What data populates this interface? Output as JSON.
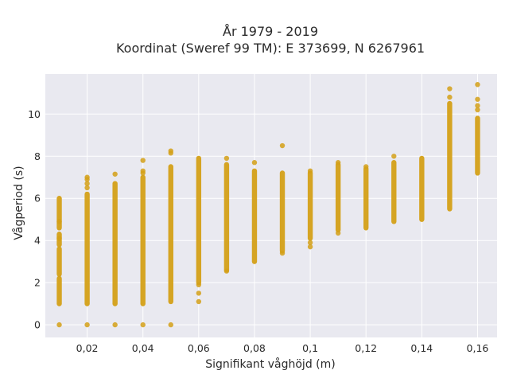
{
  "chart_data": {
    "type": "scatter",
    "title_lines": [
      "År 1979 - 2019",
      "Koordinat (Sweref 99 TM): E 373699, N 6267961"
    ],
    "xlabel": "Signifikant våghöjd (m)",
    "ylabel": "Vågperiod (s)",
    "xlim": [
      0.005,
      0.167
    ],
    "ylim": [
      -0.6,
      11.9
    ],
    "x_ticks": [
      0.02,
      0.04,
      0.06,
      0.08,
      0.1,
      0.12,
      0.14,
      0.16
    ],
    "x_tick_labels": [
      "0,02",
      "0,04",
      "0,06",
      "0,08",
      "0,1",
      "0,12",
      "0,14",
      "0,16"
    ],
    "y_ticks": [
      0,
      2,
      4,
      6,
      8,
      10
    ],
    "y_tick_labels": [
      "0",
      "2",
      "4",
      "6",
      "8",
      "10"
    ],
    "grid": true,
    "marker_color": "#D4A017",
    "plot_background": "#E9E9F0",
    "columns": [
      {
        "x": 0.01,
        "bands": [
          [
            1.0,
            2.2
          ],
          [
            2.4,
            3.6
          ],
          [
            3.8,
            4.3
          ],
          [
            4.6,
            6.0
          ]
        ],
        "points": [
          0,
          4.9,
          4.1
        ]
      },
      {
        "x": 0.02,
        "bands": [
          [
            1.0,
            6.2
          ]
        ],
        "points": [
          0,
          6.5,
          6.7,
          6.9,
          7.0
        ]
      },
      {
        "x": 0.03,
        "bands": [
          [
            1.0,
            6.7
          ]
        ],
        "points": [
          0,
          7.15
        ]
      },
      {
        "x": 0.04,
        "bands": [
          [
            1.0,
            7.0
          ]
        ],
        "points": [
          0,
          7.2,
          7.3,
          7.8
        ]
      },
      {
        "x": 0.05,
        "bands": [
          [
            1.1,
            7.5
          ]
        ],
        "points": [
          0,
          8.15,
          8.25
        ]
      },
      {
        "x": 0.06,
        "bands": [
          [
            2.0,
            7.9
          ]
        ],
        "points": [
          1.1,
          1.5,
          1.9
        ]
      },
      {
        "x": 0.07,
        "bands": [
          [
            2.6,
            7.6
          ]
        ],
        "points": [
          2.55,
          7.9
        ]
      },
      {
        "x": 0.08,
        "bands": [
          [
            3.0,
            7.3
          ]
        ],
        "points": [
          7.7
        ]
      },
      {
        "x": 0.09,
        "bands": [
          [
            3.5,
            7.2
          ]
        ],
        "points": [
          3.4,
          8.5
        ]
      },
      {
        "x": 0.1,
        "bands": [
          [
            4.1,
            7.2
          ]
        ],
        "points": [
          3.7,
          3.9,
          7.3
        ]
      },
      {
        "x": 0.11,
        "bands": [
          [
            4.5,
            7.6
          ]
        ],
        "points": [
          4.35,
          7.7
        ]
      },
      {
        "x": 0.12,
        "bands": [
          [
            4.6,
            7.4
          ]
        ],
        "points": [
          7.5
        ]
      },
      {
        "x": 0.13,
        "bands": [
          [
            4.9,
            7.7
          ]
        ],
        "points": [
          8.0
        ]
      },
      {
        "x": 0.14,
        "bands": [
          [
            5.0,
            7.9
          ]
        ],
        "points": []
      },
      {
        "x": 0.15,
        "bands": [
          [
            5.5,
            10.5
          ]
        ],
        "points": [
          10.8,
          11.2
        ]
      },
      {
        "x": 0.16,
        "bands": [
          [
            7.2,
            9.8
          ]
        ],
        "points": [
          10.2,
          10.4,
          10.7,
          11.4
        ]
      }
    ]
  }
}
